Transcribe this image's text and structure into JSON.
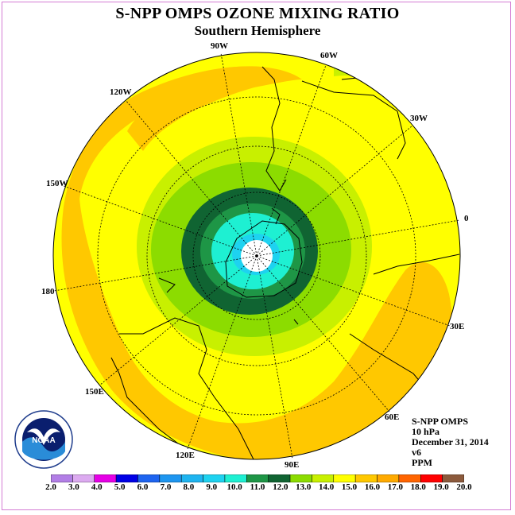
{
  "title": "S-NPP OMPS OZONE MIXING RATIO",
  "subtitle": "Southern Hemisphere",
  "info": [
    "S-NPP OMPS",
    "10 hPa",
    "December 31, 2014",
    "v6",
    "PPM"
  ],
  "logo_text": "NOAA",
  "longitude_labels": {
    "lon_0": "0",
    "lon_30e": "30E",
    "lon_60e": "60E",
    "lon_90e": "90E",
    "lon_120e": "120E",
    "lon_150e": "150E",
    "lon_180": "180",
    "lon_150w": "150W",
    "lon_120w": "120W",
    "lon_90w": "90W",
    "lon_60w": "60W",
    "lon_30w": "30W"
  },
  "colorbar": {
    "ticks": [
      "2.0",
      "3.0",
      "4.0",
      "5.0",
      "6.0",
      "7.0",
      "8.0",
      "9.0",
      "10.0",
      "11.0",
      "12.0",
      "13.0",
      "14.0",
      "15.0",
      "16.0",
      "17.0",
      "18.0",
      "19.0",
      "20.0"
    ],
    "colors": [
      "#b27ee6",
      "#dcaaf0",
      "#e600e6",
      "#0000e6",
      "#1e64f0",
      "#1e96f0",
      "#1eb4f0",
      "#1ed2f0",
      "#1ef0d2",
      "#1e9646",
      "#106432",
      "#8cdc00",
      "#c8f000",
      "#ffff00",
      "#ffc800",
      "#ffaa00",
      "#ff6400",
      "#ff0000",
      "#8c5a3c"
    ]
  }
}
